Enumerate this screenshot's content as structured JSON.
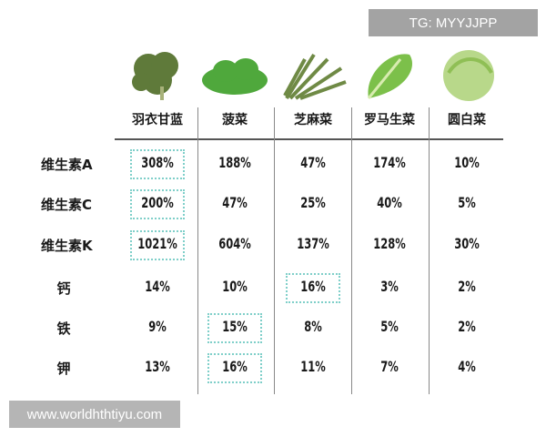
{
  "watermarks": {
    "top": "TG: MYYJJPP",
    "bottom": "www.worldhthtiyu.com"
  },
  "colors": {
    "highlight": "#7fcfc9",
    "vegetable_green": "#5a9a3a"
  },
  "chart_data": {
    "type": "table",
    "columns": [
      "羽衣甘蓝",
      "菠菜",
      "芝麻菜",
      "罗马生菜",
      "圆白菜"
    ],
    "rows": [
      {
        "label": "维生素A",
        "values": [
          "308%",
          "188%",
          "47%",
          "174%",
          "10%"
        ]
      },
      {
        "label": "维生素C",
        "values": [
          "200%",
          "47%",
          "25%",
          "40%",
          "5%"
        ]
      },
      {
        "label": "维生素K",
        "values": [
          "1021%",
          "604%",
          "137%",
          "128%",
          "30%"
        ]
      },
      {
        "label": "钙",
        "values": [
          "14%",
          "10%",
          "16%",
          "3%",
          "2%"
        ]
      },
      {
        "label": "铁",
        "values": [
          "9%",
          "15%",
          "8%",
          "5%",
          "2%"
        ]
      },
      {
        "label": "钾",
        "values": [
          "13%",
          "16%",
          "11%",
          "7%",
          "4%"
        ]
      }
    ],
    "highlighted_cells": [
      [
        0,
        0
      ],
      [
        1,
        0
      ],
      [
        2,
        0
      ],
      [
        3,
        2
      ],
      [
        4,
        1
      ],
      [
        5,
        1
      ]
    ]
  }
}
